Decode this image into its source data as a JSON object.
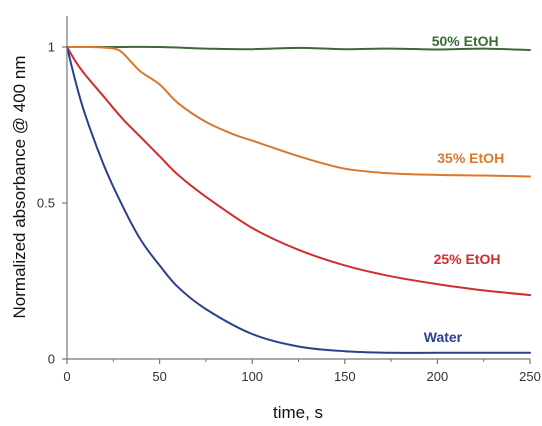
{
  "chart_data": {
    "type": "line",
    "title": "",
    "xlabel": "time, s",
    "ylabel": "Normalized absorbance  @ 400 nm",
    "xlim": [
      0,
      250
    ],
    "ylim": [
      0,
      1.0
    ],
    "x_ticks": [
      0,
      50,
      100,
      150,
      200,
      250
    ],
    "x_tick_labels": [
      "0",
      "50",
      "100",
      "150",
      "200",
      "250"
    ],
    "y_ticks": [
      0,
      0.5,
      1
    ],
    "y_tick_labels": [
      "0",
      "0.5",
      "1"
    ],
    "grid": false,
    "legend": "none; series labelled directly on the plot",
    "series": [
      {
        "name": "50% EtOH",
        "color": "#3a6b35",
        "x": [
          0,
          25,
          50,
          75,
          100,
          125,
          150,
          175,
          200,
          225,
          250
        ],
        "y": [
          1.0,
          1.0,
          1.0,
          0.995,
          0.993,
          0.997,
          0.993,
          0.995,
          0.992,
          0.995,
          0.99
        ]
      },
      {
        "name": "35% EtOH",
        "color": "#d9782d",
        "x": [
          0,
          10,
          20,
          28,
          35,
          40,
          50,
          60,
          75,
          90,
          100,
          125,
          150,
          175,
          200,
          225,
          250
        ],
        "y": [
          1.0,
          1.0,
          0.998,
          0.99,
          0.95,
          0.92,
          0.88,
          0.82,
          0.76,
          0.72,
          0.7,
          0.65,
          0.61,
          0.595,
          0.59,
          0.588,
          0.585
        ]
      },
      {
        "name": "25% EtOH",
        "color": "#d02d2d",
        "x": [
          0,
          5,
          10,
          20,
          30,
          40,
          50,
          60,
          75,
          100,
          125,
          150,
          175,
          200,
          225,
          250
        ],
        "y": [
          1.0,
          0.95,
          0.91,
          0.84,
          0.77,
          0.71,
          0.65,
          0.59,
          0.52,
          0.42,
          0.35,
          0.3,
          0.265,
          0.24,
          0.22,
          0.205
        ]
      },
      {
        "name": "Water",
        "color": "#2c3f8f",
        "x": [
          0,
          5,
          10,
          20,
          30,
          40,
          50,
          60,
          75,
          100,
          125,
          150,
          175,
          200,
          225,
          250
        ],
        "y": [
          1.0,
          0.88,
          0.78,
          0.62,
          0.49,
          0.38,
          0.3,
          0.23,
          0.16,
          0.08,
          0.04,
          0.025,
          0.02,
          0.02,
          0.02,
          0.02
        ]
      }
    ],
    "annotations": [
      {
        "text": "50% EtOH",
        "x": 215,
        "y": 1.02,
        "color": "#3a6b35"
      },
      {
        "text": "35% EtOH",
        "x": 218,
        "y": 0.645,
        "color": "#d9782d"
      },
      {
        "text": "25% EtOH",
        "x": 216,
        "y": 0.32,
        "color": "#d02d2d"
      },
      {
        "text": "Water",
        "x": 203,
        "y": 0.07,
        "color": "#2c3f8f"
      }
    ]
  }
}
